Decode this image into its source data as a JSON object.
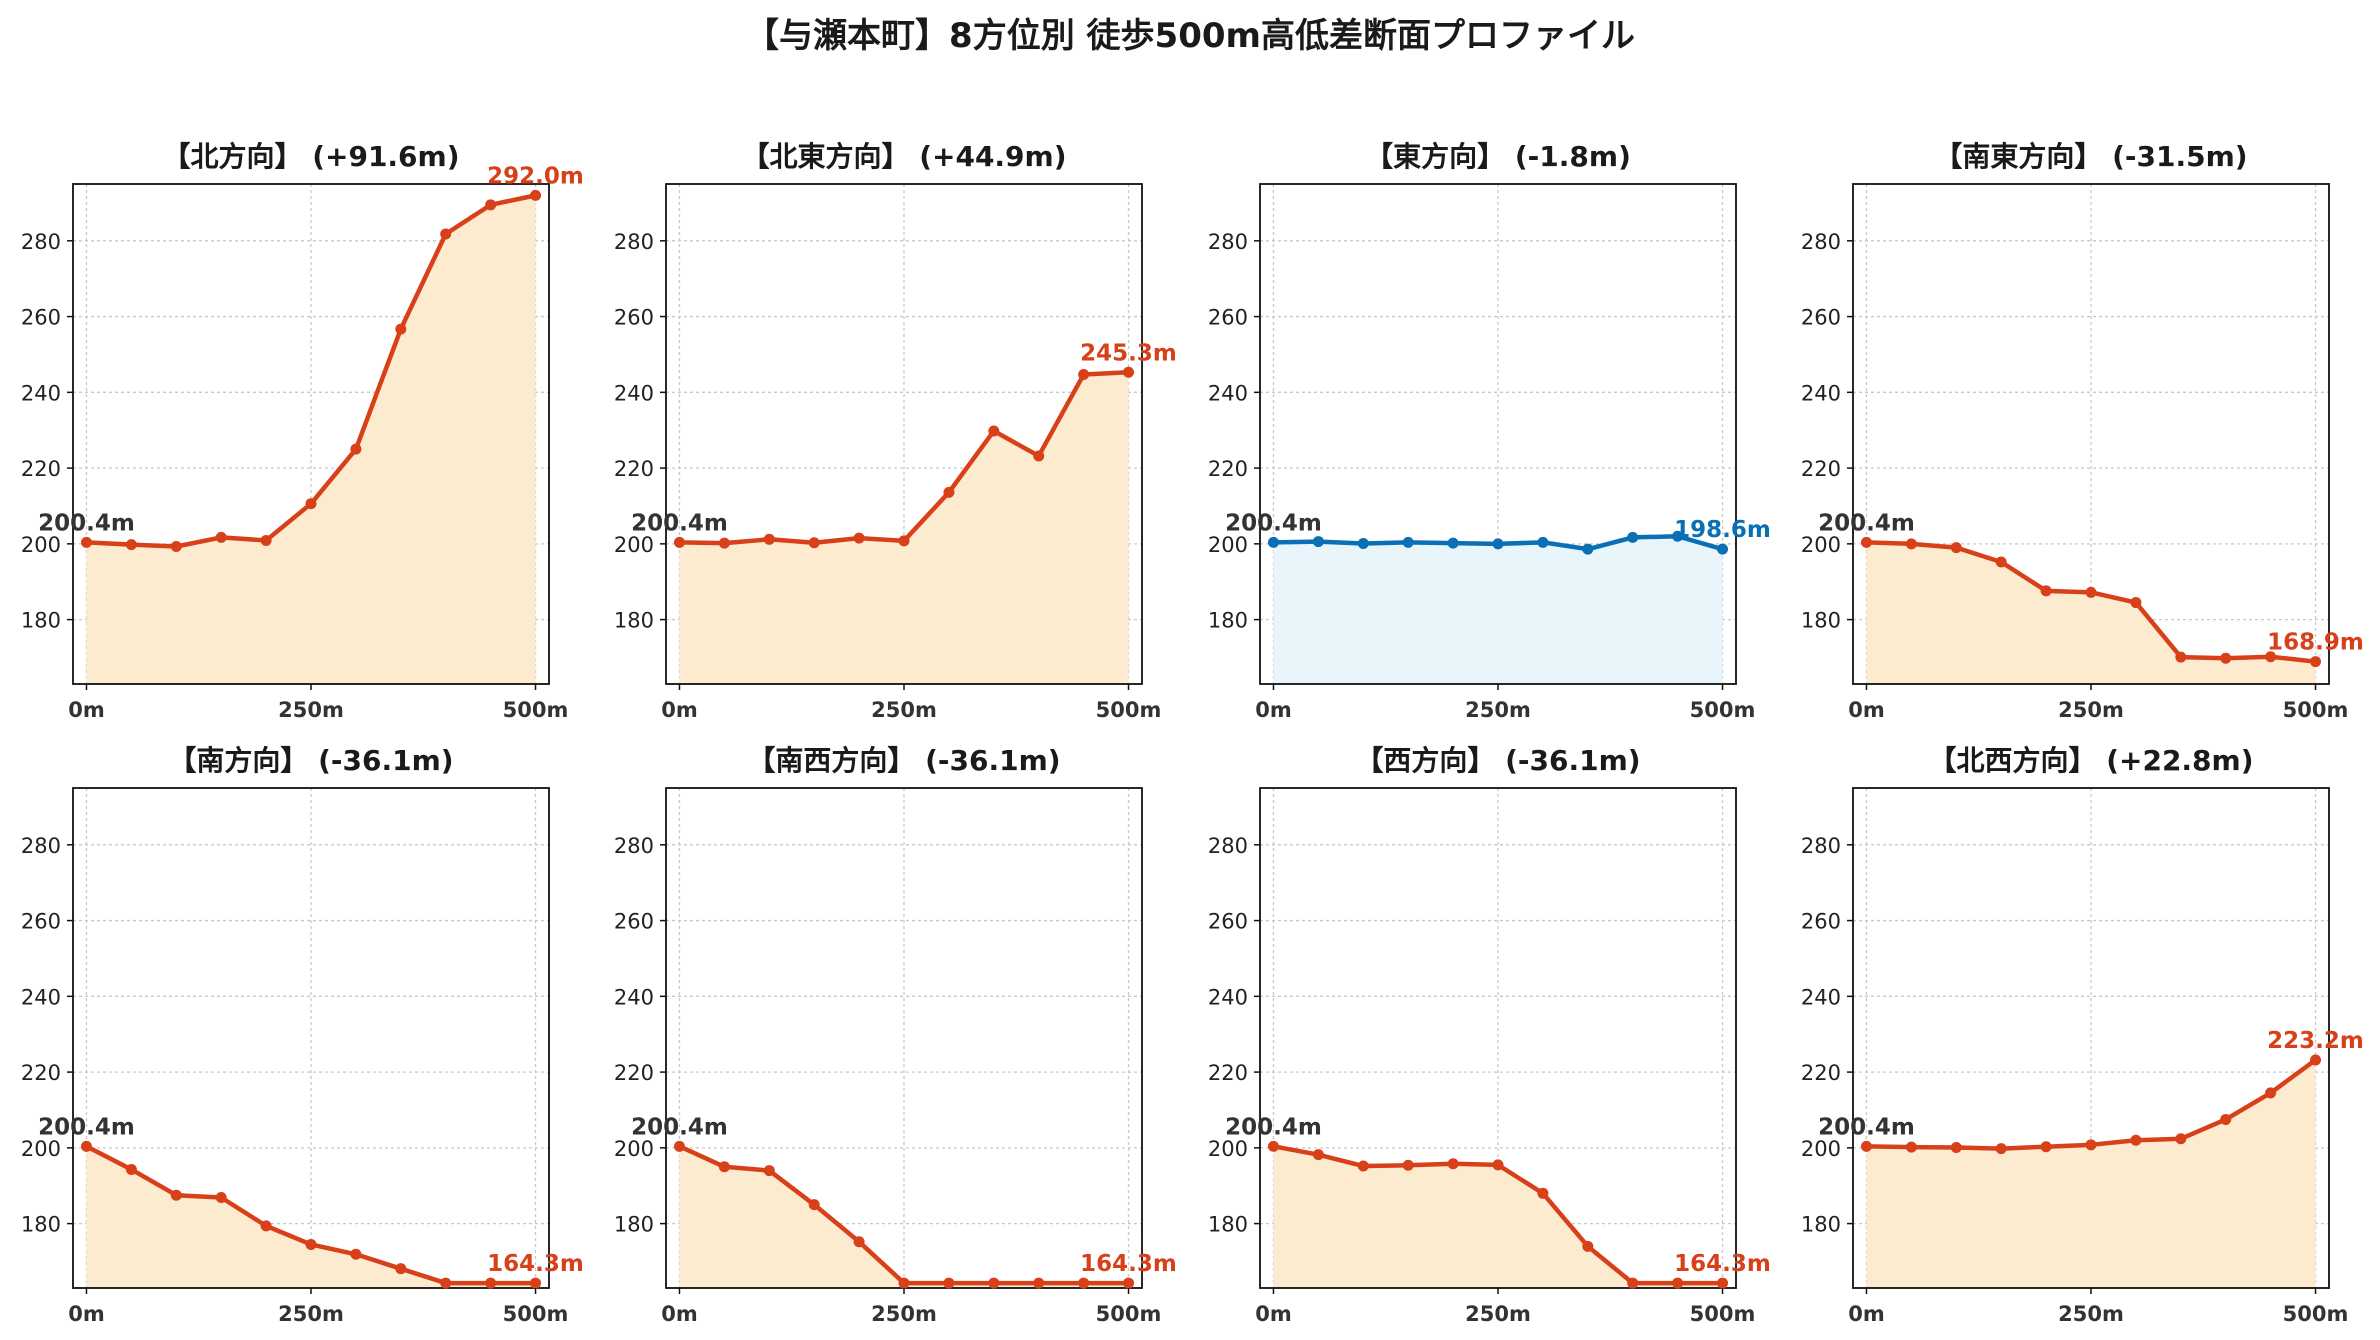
{
  "title": "【与瀬本町】8方位別 徒歩500m高低差断面プロファイル",
  "colors": {
    "up": "#d8401a",
    "flat": "#0a6fb5",
    "fill_warm": "#fdebd0",
    "fill_cool": "#e8f6fc",
    "start_label": "#333333",
    "grid": "#c8c8c8",
    "axis_text": "#222222"
  },
  "chart_data": [
    {
      "type": "area",
      "title": "【北方向】 (+91.6m)",
      "x": [
        0,
        50,
        100,
        150,
        200,
        250,
        300,
        350,
        400,
        450,
        500
      ],
      "values": [
        200.4,
        199.8,
        199.3,
        201.7,
        200.9,
        210.6,
        225.0,
        256.7,
        281.8,
        289.5,
        292.0
      ],
      "start_label": "200.4m",
      "end_label": "292.0m",
      "color_key": "up",
      "xticks": [
        "0m",
        "250m",
        "500m"
      ],
      "yticks": [
        180,
        200,
        220,
        240,
        260,
        280
      ],
      "xlim": [
        -15,
        515
      ],
      "ylim": [
        163,
        295
      ],
      "grid": true
    },
    {
      "type": "area",
      "title": "【北東方向】 (+44.9m)",
      "x": [
        0,
        50,
        100,
        150,
        200,
        250,
        300,
        350,
        400,
        450,
        500
      ],
      "values": [
        200.4,
        200.2,
        201.2,
        200.3,
        201.5,
        200.8,
        213.6,
        229.8,
        223.2,
        244.7,
        245.3
      ],
      "start_label": "200.4m",
      "end_label": "245.3m",
      "color_key": "up",
      "xticks": [
        "0m",
        "250m",
        "500m"
      ],
      "yticks": [
        180,
        200,
        220,
        240,
        260,
        280
      ],
      "xlim": [
        -15,
        515
      ],
      "ylim": [
        163,
        295
      ],
      "grid": true
    },
    {
      "type": "area",
      "title": "【東方向】 (-1.8m)",
      "x": [
        0,
        50,
        100,
        150,
        200,
        250,
        300,
        350,
        400,
        450,
        500
      ],
      "values": [
        200.4,
        200.6,
        200.1,
        200.4,
        200.2,
        200.0,
        200.4,
        198.6,
        201.7,
        202.0,
        198.6
      ],
      "start_label": "200.4m",
      "end_label": "198.6m",
      "color_key": "flat",
      "xticks": [
        "0m",
        "250m",
        "500m"
      ],
      "yticks": [
        180,
        200,
        220,
        240,
        260,
        280
      ],
      "xlim": [
        -15,
        515
      ],
      "ylim": [
        163,
        295
      ],
      "grid": true
    },
    {
      "type": "area",
      "title": "【南東方向】 (-31.5m)",
      "x": [
        0,
        50,
        100,
        150,
        200,
        250,
        300,
        350,
        400,
        450,
        500
      ],
      "values": [
        200.4,
        200.0,
        199.0,
        195.2,
        187.6,
        187.2,
        184.5,
        170.1,
        169.8,
        170.2,
        168.9
      ],
      "start_label": "200.4m",
      "end_label": "168.9m",
      "color_key": "up",
      "xticks": [
        "0m",
        "250m",
        "500m"
      ],
      "yticks": [
        180,
        200,
        220,
        240,
        260,
        280
      ],
      "xlim": [
        -15,
        515
      ],
      "ylim": [
        163,
        295
      ],
      "grid": true
    },
    {
      "type": "area",
      "title": "【南方向】 (-36.1m)",
      "x": [
        0,
        50,
        100,
        150,
        200,
        250,
        300,
        350,
        400,
        450,
        500
      ],
      "values": [
        200.4,
        194.3,
        187.5,
        186.9,
        179.4,
        174.5,
        171.9,
        168.1,
        164.3,
        164.3,
        164.3
      ],
      "start_label": "200.4m",
      "end_label": "164.3m",
      "color_key": "up",
      "xticks": [
        "0m",
        "250m",
        "500m"
      ],
      "yticks": [
        180,
        200,
        220,
        240,
        260,
        280
      ],
      "xlim": [
        -15,
        515
      ],
      "ylim": [
        163,
        295
      ],
      "grid": true
    },
    {
      "type": "area",
      "title": "【南西方向】 (-36.1m)",
      "x": [
        0,
        50,
        100,
        150,
        200,
        250,
        300,
        350,
        400,
        450,
        500
      ],
      "values": [
        200.4,
        195.0,
        194.0,
        185.0,
        175.2,
        164.3,
        164.3,
        164.3,
        164.3,
        164.3,
        164.3
      ],
      "start_label": "200.4m",
      "end_label": "164.3m",
      "color_key": "up",
      "xticks": [
        "0m",
        "250m",
        "500m"
      ],
      "yticks": [
        180,
        200,
        220,
        240,
        260,
        280
      ],
      "xlim": [
        -15,
        515
      ],
      "ylim": [
        163,
        295
      ],
      "grid": true
    },
    {
      "type": "area",
      "title": "【西方向】 (-36.1m)",
      "x": [
        0,
        50,
        100,
        150,
        200,
        250,
        300,
        350,
        400,
        450,
        500
      ],
      "values": [
        200.4,
        198.2,
        195.2,
        195.4,
        195.8,
        195.5,
        188.0,
        174.0,
        164.3,
        164.3,
        164.3
      ],
      "start_label": "200.4m",
      "end_label": "164.3m",
      "color_key": "up",
      "xticks": [
        "0m",
        "250m",
        "500m"
      ],
      "yticks": [
        180,
        200,
        220,
        240,
        260,
        280
      ],
      "xlim": [
        -15,
        515
      ],
      "ylim": [
        163,
        295
      ],
      "grid": true
    },
    {
      "type": "area",
      "title": "【北西方向】 (+22.8m)",
      "x": [
        0,
        50,
        100,
        150,
        200,
        250,
        300,
        350,
        400,
        450,
        500
      ],
      "values": [
        200.4,
        200.2,
        200.1,
        199.8,
        200.3,
        200.8,
        202.0,
        202.4,
        207.5,
        214.5,
        223.2
      ],
      "start_label": "200.4m",
      "end_label": "223.2m",
      "color_key": "up",
      "xticks": [
        "0m",
        "250m",
        "500m"
      ],
      "yticks": [
        180,
        200,
        220,
        240,
        260,
        280
      ],
      "xlim": [
        -15,
        515
      ],
      "ylim": [
        163,
        295
      ],
      "grid": true
    }
  ]
}
